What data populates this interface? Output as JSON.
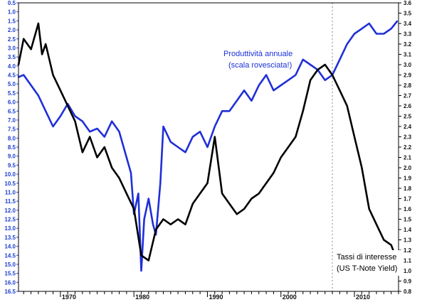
{
  "chart_data": {
    "type": "line",
    "title": "",
    "xlabel": "",
    "x_ticks": [
      1970,
      1980,
      1990,
      2000,
      2010
    ],
    "xlim": [
      1964.3,
      2016.0
    ],
    "reference_line_x": 2007.0,
    "left_axis": {
      "color": "#1a3fd0",
      "inverted": true,
      "ylim": [
        0.5,
        16.5
      ],
      "ticks": [
        "0.5",
        "1.0",
        "1.5",
        "2.0",
        "2.5",
        "3.0",
        "3.5",
        "4.0",
        "4.5",
        "5.0",
        "5.5",
        "6.0",
        "6.5",
        "7.0",
        "7.5",
        "8.0",
        "8.5",
        "9.0",
        "9.5",
        "10.0",
        "10.5",
        "11.0",
        "11.5",
        "12.0",
        "12.5",
        "13.0",
        "13.5",
        "14.0",
        "14.5",
        "15.0",
        "15.5",
        "16.0",
        "16.5"
      ]
    },
    "right_axis": {
      "color": "#111111",
      "ylim": [
        0.8,
        3.6
      ],
      "ticks": [
        "0.8",
        "0.9",
        "1.0",
        "1.1",
        "1.2",
        "1.3",
        "1.4",
        "1.5",
        "1.6",
        "1.7",
        "1.8",
        "1.9",
        "2.0",
        "2.1",
        "2.2",
        "2.3",
        "2.4",
        "2.5",
        "2.6",
        "2.7",
        "2.8",
        "2.9",
        "3.0",
        "3.1",
        "3.2",
        "3.3",
        "3.4",
        "3.5",
        "3.6"
      ]
    },
    "annotations": {
      "productivity_line1": "Produttività annuale",
      "productivity_line2": "(scala rovesciata!)",
      "rates_line1": "Tassi di interesse",
      "rates_line2": "(US T-Note Yield)"
    },
    "series": [
      {
        "axis": "right",
        "color": "#1f2fd8",
        "x": [
          1964.3,
          1965,
          1966,
          1967,
          1968,
          1969,
          1970,
          1971,
          1972,
          1973,
          1974,
          1975,
          1976,
          1977,
          1978,
          1979,
          1979.6,
          1980,
          1980.6,
          1981,
          1981.4,
          1982,
          1982.6,
          1983,
          1983.6,
          1984,
          1985,
          1986,
          1987,
          1988,
          1989,
          1990,
          1991,
          1992,
          1993,
          1994,
          1995,
          1996,
          1997,
          1998,
          1999,
          2000,
          2001,
          2002,
          2003,
          2004,
          2005,
          2006,
          2007,
          2008,
          2009,
          2010,
          2011,
          2012,
          2013,
          2014,
          2015,
          2015.8
        ],
        "values": [
          2.88,
          2.9,
          2.8,
          2.7,
          2.55,
          2.4,
          2.5,
          2.62,
          2.5,
          2.45,
          2.35,
          2.38,
          2.3,
          2.45,
          2.35,
          2.1,
          1.95,
          1.55,
          1.75,
          1.0,
          1.5,
          1.7,
          1.45,
          1.35,
          1.85,
          2.4,
          2.25,
          2.2,
          2.15,
          2.3,
          2.35,
          2.2,
          2.4,
          2.55,
          2.55,
          2.65,
          2.75,
          2.65,
          2.8,
          2.9,
          2.75,
          2.8,
          2.85,
          2.9,
          3.05,
          3.0,
          2.95,
          2.85,
          2.9,
          3.05,
          3.2,
          3.3,
          3.35,
          3.4,
          3.3,
          3.3,
          3.35,
          3.42
        ]
      },
      {
        "axis": "right",
        "color": "#000000",
        "x": [
          1964.3,
          1965,
          1966,
          1967,
          1967.5,
          1968,
          1969,
          1970,
          1971,
          1972,
          1973,
          1974,
          1975,
          1976,
          1977,
          1978,
          1979,
          1980,
          1981,
          1982,
          1983,
          1984,
          1985,
          1986,
          1987,
          1988,
          1989,
          1990,
          1991,
          1992,
          1993,
          1994,
          1995,
          1996,
          1997,
          1998,
          1999,
          2000,
          2001,
          2002,
          2003,
          2004,
          2005,
          2006,
          2007,
          2008,
          2009,
          2010,
          2011,
          2012,
          2013,
          2014,
          2015,
          2015.8
        ],
        "values": [
          3.0,
          3.25,
          3.15,
          3.4,
          3.1,
          3.2,
          2.9,
          2.75,
          2.6,
          2.45,
          2.15,
          2.3,
          2.1,
          2.2,
          2.0,
          1.9,
          1.75,
          1.6,
          1.15,
          1.1,
          1.4,
          1.5,
          1.45,
          1.5,
          1.45,
          1.65,
          1.75,
          1.85,
          2.3,
          1.75,
          1.65,
          1.55,
          1.6,
          1.7,
          1.75,
          1.85,
          1.95,
          2.1,
          2.2,
          2.3,
          2.55,
          2.85,
          2.95,
          3.0,
          2.9,
          2.75,
          2.6,
          2.3,
          2.0,
          1.6,
          1.45,
          1.3,
          1.25,
          1.1
        ]
      }
    ]
  }
}
